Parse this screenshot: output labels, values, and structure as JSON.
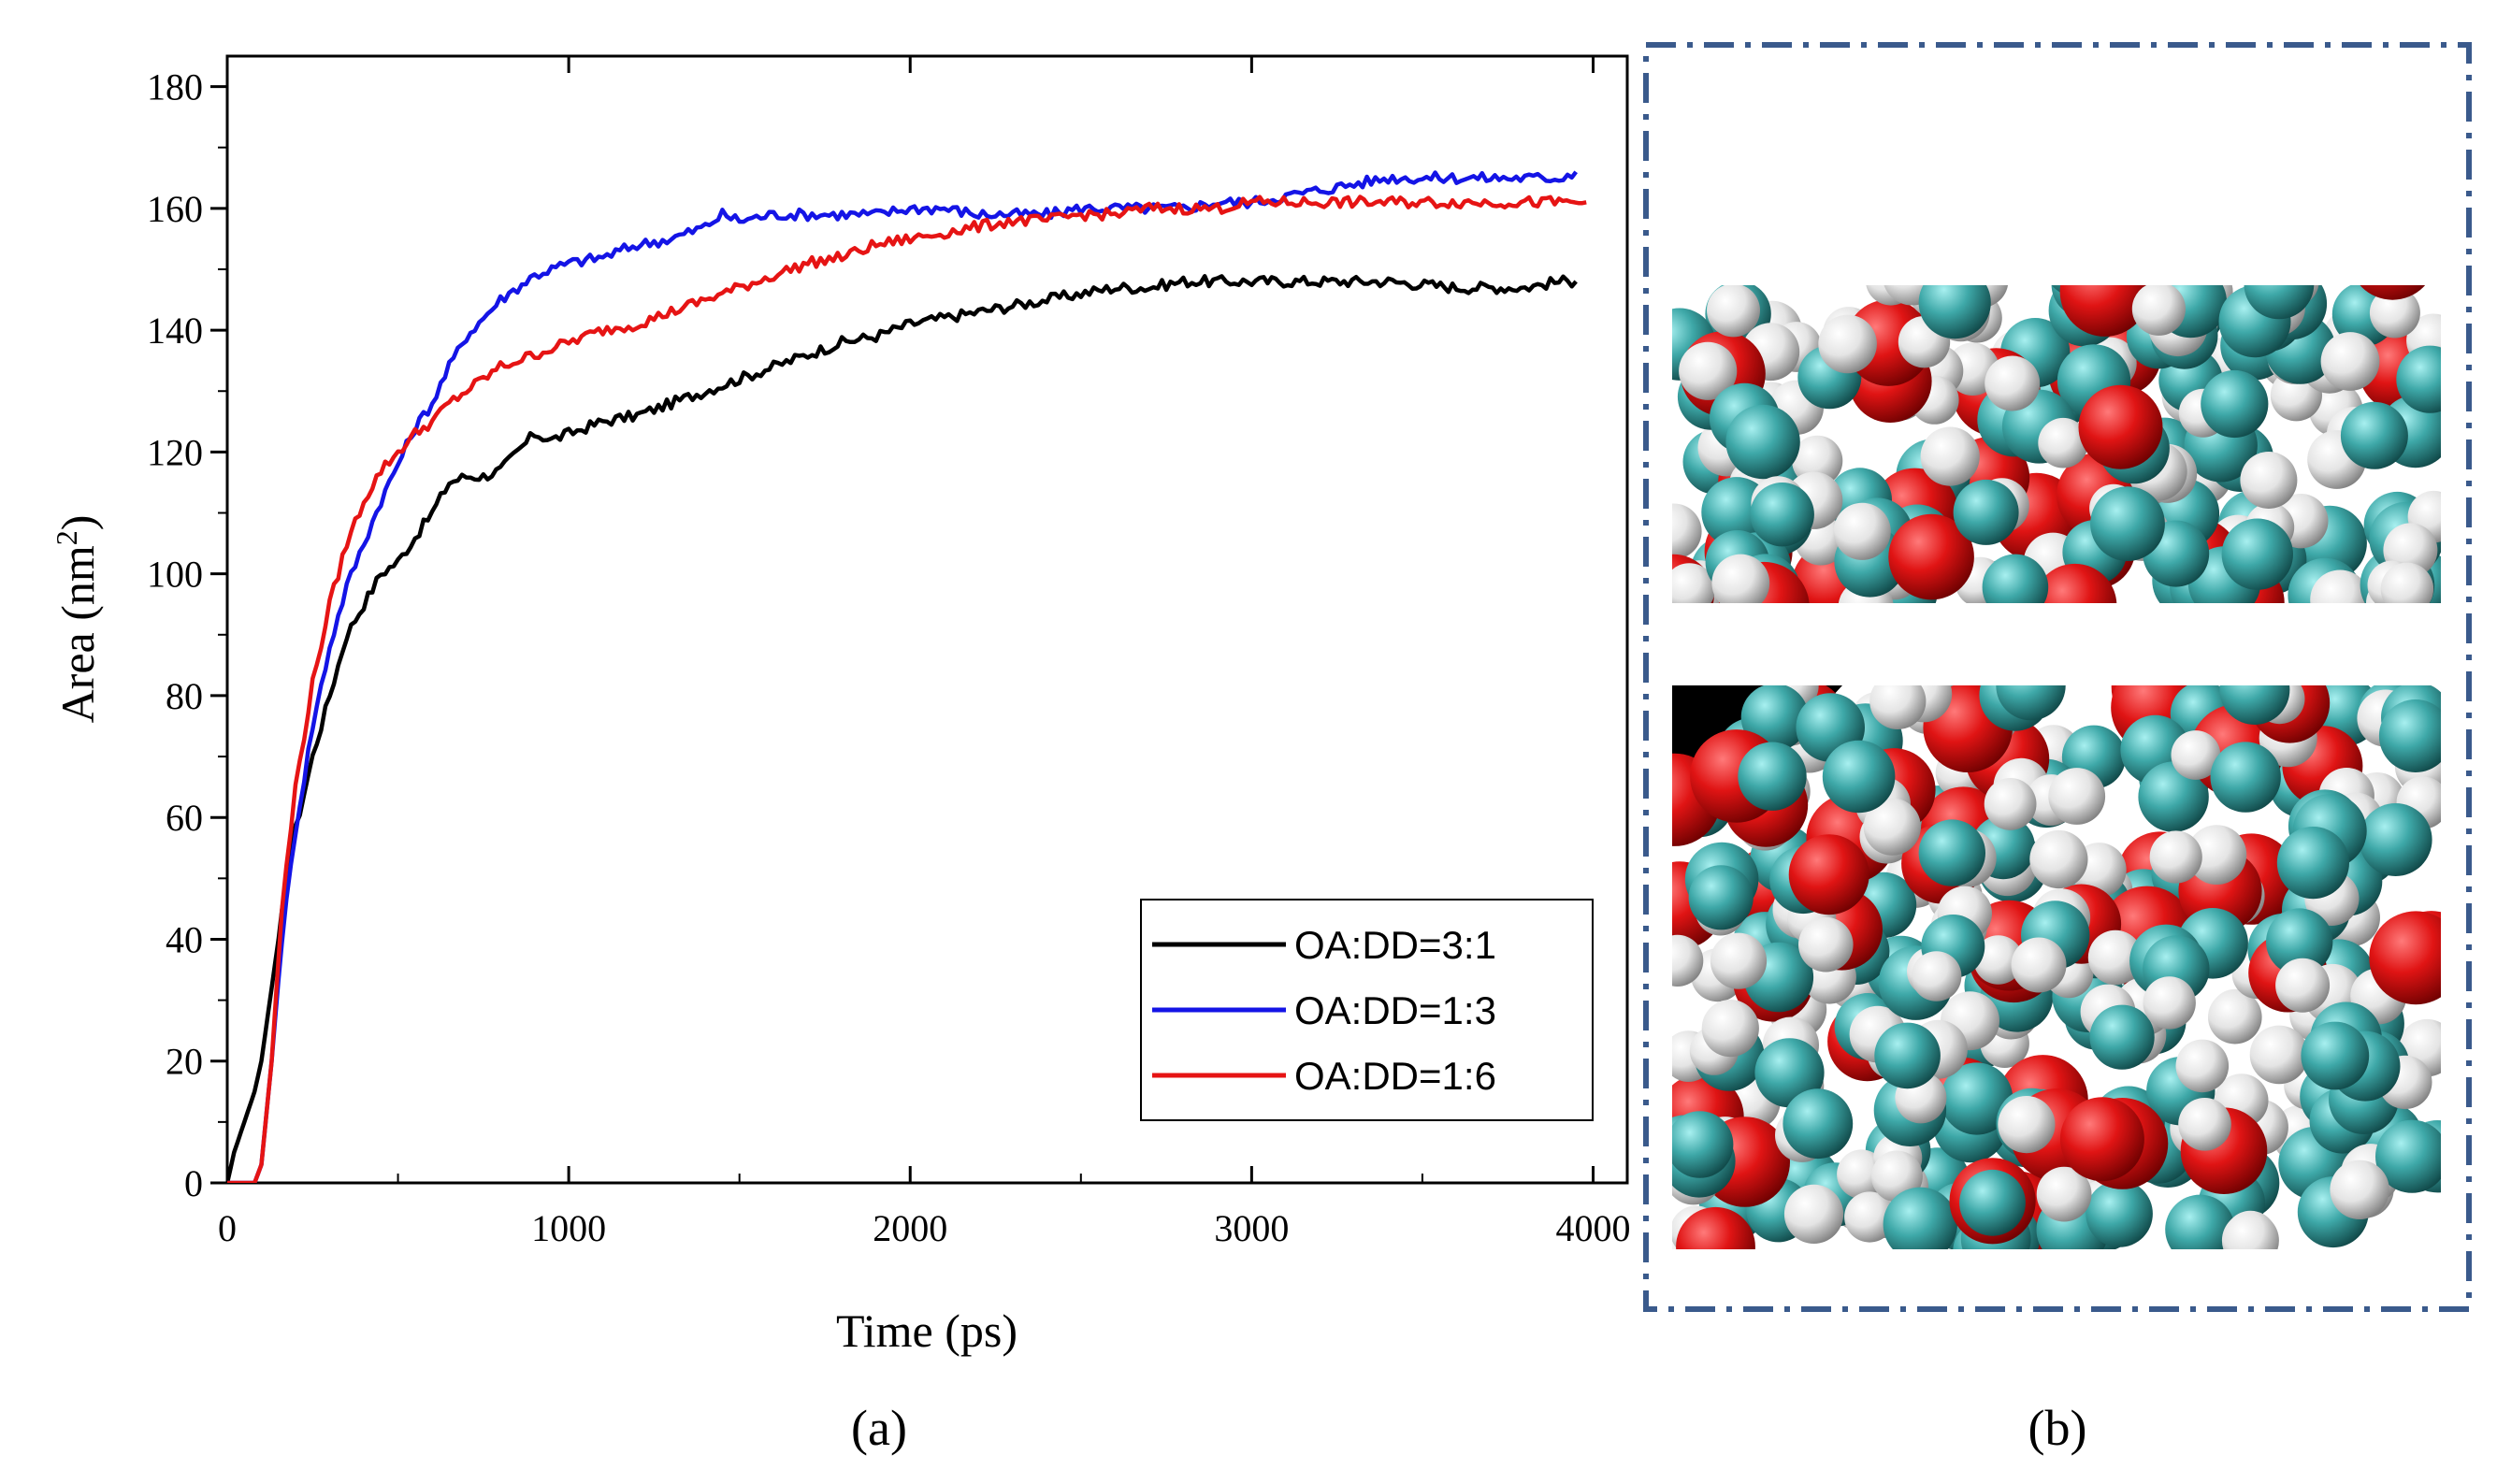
{
  "chart_data": {
    "type": "line",
    "xlabel": "Time (ps)",
    "ylabel_main": "Area (nm",
    "ylabel_sup": "2",
    "ylabel_close": ")",
    "xlim": [
      0,
      4100
    ],
    "ylim": [
      0,
      185
    ],
    "xticks": [
      0,
      1000,
      2000,
      3000,
      4000
    ],
    "xticks_minor": [
      500,
      1500,
      2500,
      3500
    ],
    "yticks": [
      0,
      20,
      40,
      60,
      80,
      100,
      120,
      140,
      160,
      180
    ],
    "yticks_minor": [
      10,
      30,
      50,
      70,
      90,
      110,
      130,
      150,
      170
    ],
    "legend_position": "bottom-right",
    "series": [
      {
        "name": "OA:DD=3:1",
        "color": "#000000",
        "x": [
          0,
          20,
          50,
          80,
          100,
          120,
          150,
          180,
          200,
          250,
          300,
          350,
          400,
          450,
          500,
          550,
          600,
          650,
          700,
          750,
          800,
          850,
          900,
          950,
          1000,
          1100,
          1200,
          1300,
          1400,
          1500,
          1600,
          1700,
          1800,
          1900,
          2000,
          2100,
          2200,
          2300,
          2400,
          2500,
          2600,
          2700,
          2800,
          2900,
          3000,
          3200,
          3400,
          3600,
          3800,
          3900,
          3950
        ],
        "y": [
          0,
          5,
          10,
          15,
          20,
          28,
          40,
          52,
          58,
          70,
          80,
          90,
          95,
          100,
          102,
          106,
          110,
          115,
          116,
          116,
          117,
          120,
          123,
          122,
          123,
          125,
          126,
          128,
          130,
          132,
          134,
          136,
          138,
          139,
          141,
          142,
          143,
          144,
          145,
          146,
          147,
          147,
          148,
          148,
          148,
          148,
          148,
          147,
          147,
          148,
          148
        ]
      },
      {
        "name": "OA:DD=1:3",
        "color": "#1414e6",
        "x": [
          0,
          50,
          80,
          100,
          130,
          160,
          200,
          250,
          300,
          350,
          400,
          450,
          500,
          550,
          600,
          650,
          700,
          750,
          800,
          850,
          900,
          1000,
          1100,
          1200,
          1300,
          1400,
          1450,
          1500,
          1600,
          1700,
          1800,
          1900,
          2000,
          2100,
          2200,
          2300,
          2400,
          2500,
          2600,
          2700,
          2800,
          2900,
          3000,
          3100,
          3200,
          3300,
          3400,
          3500,
          3600,
          3700,
          3800,
          3900,
          3950
        ],
        "y": [
          0,
          0,
          0,
          3,
          20,
          40,
          58,
          75,
          88,
          98,
          105,
          112,
          118,
          124,
          128,
          134,
          139,
          142,
          145,
          147,
          149,
          151,
          152,
          154,
          155,
          157,
          159,
          158,
          159,
          159,
          159,
          159,
          160,
          160,
          159,
          159,
          159,
          160,
          160,
          160,
          160,
          161,
          161,
          162,
          163,
          164,
          165,
          165,
          165,
          165,
          165,
          165,
          166
        ]
      },
      {
        "name": "OA:DD=1:6",
        "color": "#e61414",
        "x": [
          0,
          50,
          80,
          100,
          130,
          160,
          200,
          250,
          300,
          350,
          400,
          450,
          500,
          550,
          600,
          650,
          700,
          750,
          800,
          900,
          1000,
          1100,
          1200,
          1300,
          1400,
          1500,
          1600,
          1700,
          1800,
          1900,
          2000,
          2100,
          2200,
          2300,
          2400,
          2500,
          2600,
          2700,
          2800,
          2900,
          3000,
          3200,
          3400,
          3600,
          3800,
          3900,
          3980
        ],
        "y": [
          0,
          0,
          0,
          3,
          20,
          45,
          65,
          82,
          95,
          105,
          112,
          117,
          120,
          123,
          125,
          128,
          130,
          132,
          134,
          136,
          138,
          140,
          141,
          143,
          145,
          147,
          149,
          151,
          152,
          154,
          155,
          156,
          157,
          158,
          158,
          159,
          159,
          160,
          160,
          160,
          161,
          161,
          161,
          161,
          161,
          161,
          161
        ]
      }
    ]
  },
  "panel_a_label": "(a)",
  "panel_b_label": "(b)",
  "colors": {
    "frame_dash": "#3a5a8c",
    "oxygen": "#dd1111",
    "carbon": "#3a9c9c",
    "hydrogen": "#eeeeee"
  }
}
